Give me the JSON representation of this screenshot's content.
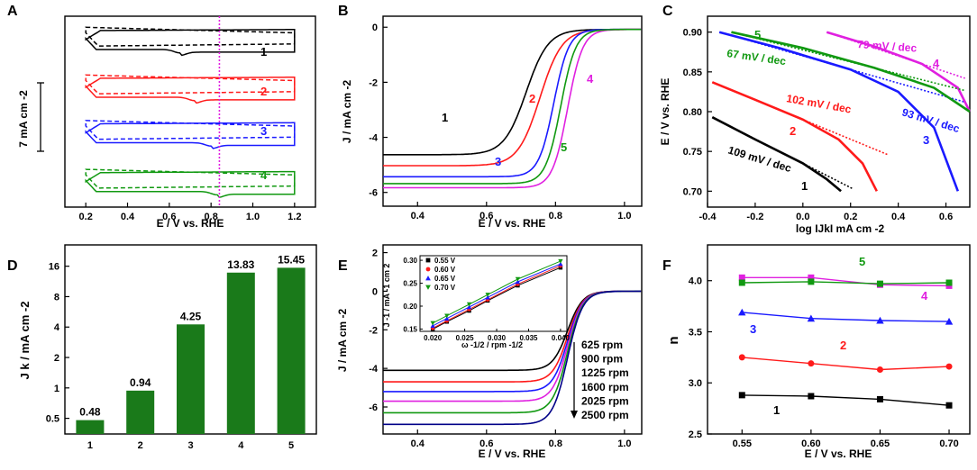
{
  "figure": {
    "panel_letters": [
      "A",
      "B",
      "C",
      "D",
      "E",
      "F"
    ]
  },
  "chart_data": [
    {
      "id": "A",
      "type": "line",
      "title": "",
      "xlabel": "E / V vs. RHE",
      "ylabel": "",
      "xlim": [
        0.1,
        1.3
      ],
      "ylim": [
        0,
        8.6
      ],
      "xticks": [
        0.2,
        0.4,
        0.6,
        0.8,
        1.0,
        1.2
      ],
      "xtick_labels": [
        "0.2",
        "0.4",
        "0.6",
        "0.8",
        "1.0",
        "1.2"
      ],
      "scale_bar_label": "7 mA cm -2",
      "scale_bar_value": 7,
      "vline_x": 0.84,
      "vline_color": "#e020e0",
      "series": [
        {
          "name": "1",
          "color": "#000000",
          "offset": 7.6,
          "peak": 0.65
        },
        {
          "name": "2",
          "color": "#ff1a1a",
          "offset": 5.45,
          "peak": 0.72
        },
        {
          "name": "3",
          "color": "#1a1aff",
          "offset": 3.4,
          "peak": 0.8
        },
        {
          "name": "4",
          "color": "#119911",
          "offset": 1.2,
          "peak": 0.83
        }
      ],
      "annotations": [
        "1",
        "2",
        "3",
        "4"
      ]
    },
    {
      "id": "B",
      "type": "line",
      "title": "",
      "xlabel": "E / V vs. RHE",
      "ylabel": "J / mA cm -2",
      "xlim": [
        0.3,
        1.05
      ],
      "ylim": [
        -6.5,
        0.4
      ],
      "xticks": [
        0.4,
        0.6,
        0.8,
        1.0
      ],
      "xtick_labels": [
        "0.4",
        "0.6",
        "0.8",
        "1.0"
      ],
      "yticks": [
        0,
        -2,
        -4,
        -6
      ],
      "ytick_labels": [
        "0",
        "-2",
        "-4",
        "-6"
      ],
      "series": [
        {
          "name": "1",
          "color": "#000000",
          "limiting_current": -4.55,
          "half_wave": 0.715
        },
        {
          "name": "2",
          "color": "#ff1a1a",
          "limiting_current": -4.95,
          "half_wave": 0.755
        },
        {
          "name": "3",
          "color": "#1a1aff",
          "limiting_current": -5.35,
          "half_wave": 0.795
        },
        {
          "name": "4",
          "color": "#e020e0",
          "limiting_current": -5.75,
          "half_wave": 0.835
        },
        {
          "name": "5",
          "color": "#119911",
          "limiting_current": -5.6,
          "half_wave": 0.815
        }
      ],
      "annotations": [
        "1",
        "2",
        "3",
        "4",
        "5"
      ]
    },
    {
      "id": "C",
      "type": "line",
      "title": "",
      "xlabel": "log IJkI mA cm -2",
      "ylabel": "E / V vs. RHE",
      "xlim": [
        -0.4,
        0.7
      ],
      "ylim": [
        0.68,
        0.92
      ],
      "xticks": [
        -0.4,
        -0.2,
        0.0,
        0.2,
        0.4,
        0.6
      ],
      "xtick_labels": [
        "-0.4",
        "-0.2",
        "0.0",
        "0.2",
        "0.4",
        "0.6"
      ],
      "yticks": [
        0.7,
        0.75,
        0.8,
        0.85,
        0.9
      ],
      "ytick_labels": [
        "0.70",
        "0.75",
        "0.80",
        "0.85",
        "0.90"
      ],
      "series": [
        {
          "name": "1",
          "color": "#000000",
          "tafel_slope": "109 mV / dec",
          "x": [
            -0.38,
            -0.2,
            0.0,
            0.1,
            0.16
          ],
          "y": [
            0.793,
            0.765,
            0.735,
            0.715,
            0.7
          ]
        },
        {
          "name": "2",
          "color": "#ff1a1a",
          "tafel_slope": "102 mV / dec",
          "x": [
            -0.38,
            -0.2,
            0.0,
            0.15,
            0.25,
            0.31
          ],
          "y": [
            0.837,
            0.815,
            0.79,
            0.765,
            0.735,
            0.7
          ]
        },
        {
          "name": "3",
          "color": "#1a1aff",
          "tafel_slope": "93 mV / dec",
          "x": [
            -0.35,
            -0.1,
            0.2,
            0.4,
            0.55,
            0.65
          ],
          "y": [
            0.9,
            0.88,
            0.853,
            0.825,
            0.78,
            0.7
          ]
        },
        {
          "name": "4",
          "color": "#e020e0",
          "tafel_slope": "79 mV / dec",
          "x": [
            0.1,
            0.3,
            0.5,
            0.65,
            0.7
          ],
          "y": [
            0.9,
            0.882,
            0.86,
            0.83,
            0.8
          ]
        },
        {
          "name": "5",
          "color": "#119911",
          "tafel_slope": "67 mV / dec",
          "x": [
            -0.3,
            0.0,
            0.3,
            0.55,
            0.7
          ],
          "y": [
            0.9,
            0.88,
            0.855,
            0.83,
            0.8
          ]
        }
      ],
      "annotations": [
        "1",
        "2",
        "3",
        "4",
        "5"
      ]
    },
    {
      "id": "D",
      "type": "bar",
      "title": "",
      "xlabel": "",
      "ylabel": "J k / mA cm -2",
      "y_scale": "log",
      "ylim": [
        0.35,
        26
      ],
      "yticks": [
        0.5,
        1,
        2,
        4,
        8,
        16
      ],
      "ytick_labels": [
        "0.5",
        "1",
        "2",
        "4",
        "8",
        "16"
      ],
      "categories": [
        "1",
        "2",
        "3",
        "4",
        "5"
      ],
      "values": [
        0.48,
        0.94,
        4.25,
        13.83,
        15.45
      ],
      "value_labels": [
        "0.48",
        "0.94",
        "4.25",
        "13.83",
        "15.45"
      ],
      "color": "#1a7a1a"
    },
    {
      "id": "E",
      "type": "line",
      "title": "",
      "xlabel": "E / V vs. RHE",
      "ylabel": "J / mA cm -2",
      "xlim": [
        0.3,
        1.05
      ],
      "ylim": [
        -7.4,
        2.4
      ],
      "xticks": [
        0.4,
        0.6,
        0.8,
        1.0
      ],
      "xtick_labels": [
        "0.4",
        "0.6",
        "0.8",
        "1.0"
      ],
      "yticks": [
        2,
        0,
        -2,
        -4,
        -6
      ],
      "ytick_labels": [
        "2",
        "0",
        "-2",
        "-4",
        "-6"
      ],
      "rpm_labels": [
        "625 rpm",
        "900 rpm",
        "1225 rpm",
        "1600 rpm",
        "2025 rpm",
        "2500 rpm"
      ],
      "series": [
        {
          "name": "625 rpm",
          "color": "#000000",
          "limiting_current": -4.1
        },
        {
          "name": "900 rpm",
          "color": "#ff1a1a",
          "limiting_current": -4.7
        },
        {
          "name": "1225 rpm",
          "color": "#1a1aff",
          "limiting_current": -5.2
        },
        {
          "name": "1600 rpm",
          "color": "#e020e0",
          "limiting_current": -5.7
        },
        {
          "name": "2025 rpm",
          "color": "#119911",
          "limiting_current": -6.3
        },
        {
          "name": "2500 rpm",
          "color": "#000088",
          "limiting_current": -6.9
        }
      ],
      "inset": {
        "type": "line",
        "xlabel": "ω -1/2 / rpm -1/2",
        "ylabel": "J -1 / mA -1 cm 2",
        "xlim": [
          0.018,
          0.041
        ],
        "ylim": [
          0.145,
          0.31
        ],
        "xticks": [
          0.02,
          0.025,
          0.03,
          0.035,
          0.04
        ],
        "xtick_labels": [
          "0.020",
          "0.025",
          "0.030",
          "0.035",
          "0.040"
        ],
        "yticks": [
          0.15,
          0.2,
          0.25,
          0.3
        ],
        "ytick_labels": [
          "0.15",
          "0.20",
          "0.25",
          "0.30"
        ],
        "x": [
          0.02,
          0.0222,
          0.0257,
          0.0286,
          0.0333,
          0.04
        ],
        "series": [
          {
            "name": "0.55 V",
            "color": "#000000",
            "marker": "square",
            "y": [
              0.15,
              0.166,
              0.19,
              0.212,
              0.245,
              0.284
            ]
          },
          {
            "name": "0.60 V",
            "color": "#ff1a1a",
            "marker": "circle",
            "y": [
              0.152,
              0.168,
              0.193,
              0.214,
              0.248,
              0.288
            ]
          },
          {
            "name": "0.65 V",
            "color": "#1a1aff",
            "marker": "triangle-up",
            "y": [
              0.157,
              0.173,
              0.198,
              0.219,
              0.253,
              0.292
            ]
          },
          {
            "name": "0.70 V",
            "color": "#119911",
            "marker": "triangle-down",
            "y": [
              0.163,
              0.179,
              0.204,
              0.225,
              0.259,
              0.298
            ]
          }
        ]
      }
    },
    {
      "id": "F",
      "type": "line",
      "title": "",
      "xlabel": "E / V vs. RHE",
      "ylabel": "n",
      "xlim": [
        0.525,
        0.715
      ],
      "ylim": [
        2.5,
        4.35
      ],
      "xticks": [
        0.55,
        0.6,
        0.65,
        0.7
      ],
      "xtick_labels": [
        "0.55",
        "0.60",
        "0.65",
        "0.70"
      ],
      "yticks": [
        2.5,
        3.0,
        3.5,
        4.0
      ],
      "ytick_labels": [
        "2.5",
        "3.0",
        "3.5",
        "4.0"
      ],
      "x": [
        0.55,
        0.6,
        0.65,
        0.7
      ],
      "series": [
        {
          "name": "1",
          "color": "#000000",
          "marker": "square",
          "values": [
            2.88,
            2.87,
            2.84,
            2.78
          ]
        },
        {
          "name": "2",
          "color": "#ff1a1a",
          "marker": "circle",
          "values": [
            3.25,
            3.19,
            3.13,
            3.16
          ]
        },
        {
          "name": "3",
          "color": "#1a1aff",
          "marker": "triangle-up",
          "values": [
            3.69,
            3.63,
            3.61,
            3.6
          ]
        },
        {
          "name": "4",
          "color": "#e020e0",
          "marker": "square",
          "values": [
            4.03,
            4.03,
            3.96,
            3.95
          ]
        },
        {
          "name": "5",
          "color": "#119911",
          "marker": "square",
          "values": [
            3.98,
            3.99,
            3.97,
            3.98
          ]
        }
      ],
      "annotations": [
        "1",
        "2",
        "3",
        "4",
        "5"
      ]
    }
  ]
}
